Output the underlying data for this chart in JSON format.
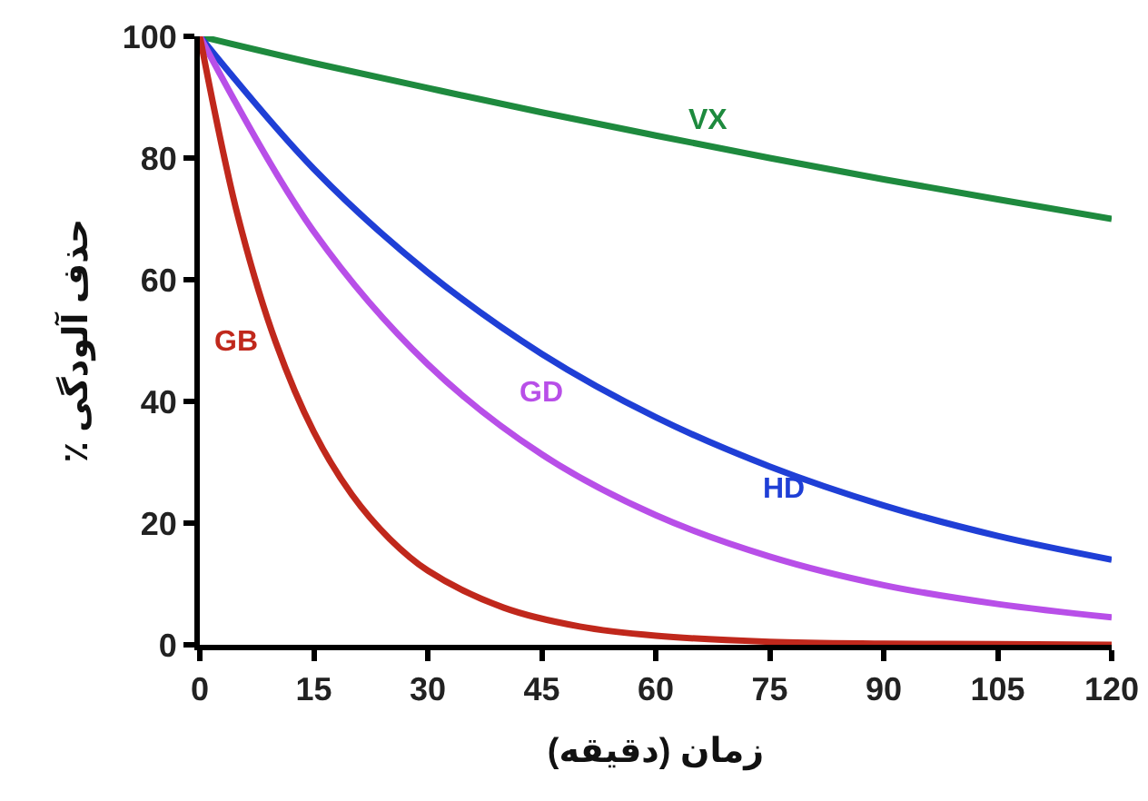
{
  "chart_data": {
    "type": "line",
    "xlabel": "زمان (دقیقه)",
    "ylabel": "٪ حذف آلودگی",
    "xlim": [
      0,
      120
    ],
    "xticks": [
      0,
      15,
      30,
      45,
      60,
      75,
      90,
      105,
      120
    ],
    "ylim": [
      0,
      100
    ],
    "yticks": [
      0,
      20,
      40,
      60,
      80,
      100
    ],
    "grid": false,
    "marker": "none",
    "line_style": "solid",
    "series": [
      {
        "name": "VX",
        "color": "#1e8a3e",
        "x": [
          0,
          15,
          30,
          45,
          60,
          75,
          90,
          105,
          120
        ],
        "values": [
          100,
          95.6,
          91.5,
          87.5,
          83.7,
          80,
          76.5,
          73.2,
          70
        ]
      },
      {
        "name": "HD",
        "color": "#1f3fd6",
        "x": [
          0,
          15,
          30,
          45,
          60,
          75,
          90,
          105,
          120
        ],
        "values": [
          100,
          78.2,
          61.2,
          47.8,
          37.4,
          29.3,
          22.9,
          17.9,
          14
        ]
      },
      {
        "name": "GD",
        "color": "#b84fe8",
        "x": [
          0,
          15,
          30,
          45,
          60,
          75,
          90,
          105,
          120
        ],
        "values": [
          100,
          67.9,
          46.1,
          31.3,
          21.3,
          14.5,
          9.8,
          6.7,
          4.5
        ]
      },
      {
        "name": "GB",
        "color": "#c0281c",
        "x": [
          0,
          5,
          10,
          15,
          20,
          25,
          30,
          40,
          50,
          60,
          75,
          90,
          105,
          120
        ],
        "values": [
          100,
          70.5,
          49.7,
          35,
          24.7,
          17.4,
          12.2,
          6.1,
          3,
          1.5,
          0.5,
          0.2,
          0.1,
          0
        ]
      }
    ]
  }
}
